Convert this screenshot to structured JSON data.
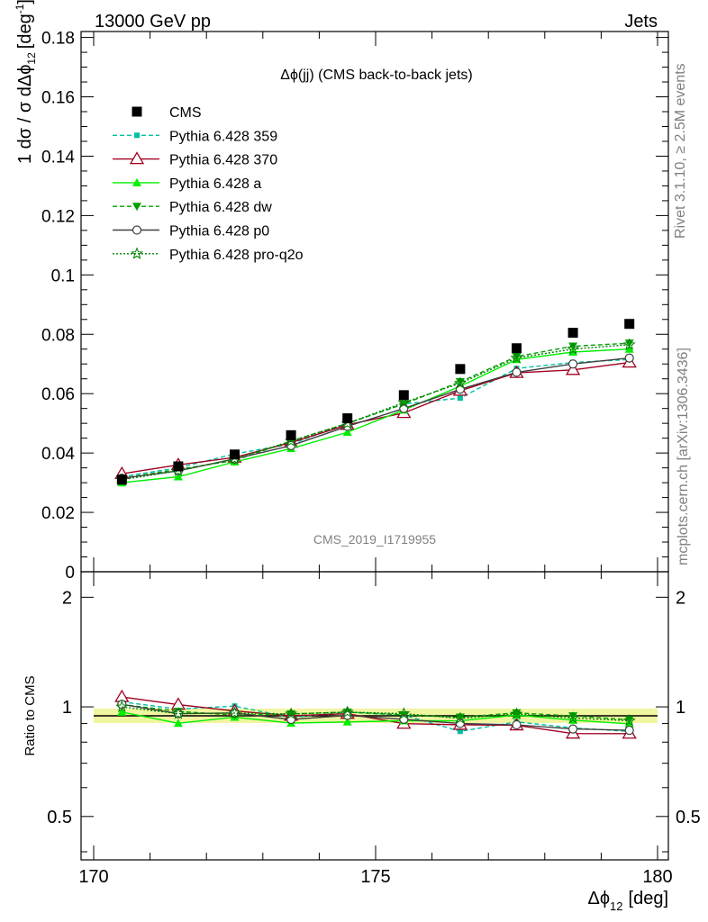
{
  "header": {
    "left": "13000 GeV pp",
    "right": "Jets"
  },
  "side": {
    "rivet": "Rivet 3.1.10, ≥ 2.5M events",
    "mcplots": "mcplots.cern.ch [arXiv:1306.3436]"
  },
  "chart_data": {
    "type": "line",
    "title": "Δϕ(jj) (CMS back-to-back jets)",
    "analysis_id": "CMS_2019_I1719955",
    "xlabel": "Δϕ",
    "xlabel_sub": "12",
    "xlabel_unit": "[deg]",
    "ylabel_main": "1 dσ / σ dΔϕ",
    "ylabel_sub": "12",
    "ylabel_unit": "[deg",
    "ylabel_unit_sup": "-1",
    "ylabel_unit_close": "]",
    "ratio_ylabel": "Ratio to CMS",
    "xlim": [
      170,
      180
    ],
    "ylim": [
      0,
      0.182
    ],
    "ratio_ylim": [
      0.38,
      2.35
    ],
    "x_ticks": [
      "170",
      "175",
      "180"
    ],
    "y_ticks": [
      "0",
      "0.02",
      "0.04",
      "0.06",
      "0.08",
      "0.1",
      "0.12",
      "0.14",
      "0.16",
      "0.18"
    ],
    "ratio_ticks": [
      "0.5",
      "1",
      "2"
    ],
    "x": [
      170.5,
      171.5,
      172.5,
      173.5,
      174.5,
      175.5,
      176.5,
      177.5,
      178.5,
      179.5
    ],
    "series": [
      {
        "name": "CMS",
        "color": "#000000",
        "dash": "",
        "marker": "square",
        "values": [
          0.031,
          0.0355,
          0.0395,
          0.046,
          0.0517,
          0.0595,
          0.0683,
          0.0753,
          0.0805,
          0.0835
        ]
      },
      {
        "name": "Pythia 6.428 359",
        "color": "#00c0a0",
        "dash": "5,3",
        "marker": "smallsquare",
        "values": [
          0.032,
          0.035,
          0.0397,
          0.043,
          0.05,
          0.0565,
          0.0585,
          0.0685,
          0.0705,
          0.0715
        ]
      },
      {
        "name": "Pythia 6.428 370",
        "color": "#a00020",
        "dash": "",
        "marker": "opentriangle",
        "values": [
          0.033,
          0.036,
          0.0385,
          0.0435,
          0.0495,
          0.0535,
          0.061,
          0.067,
          0.068,
          0.0705
        ]
      },
      {
        "name": "Pythia 6.428 a",
        "color": "#00ee00",
        "dash": "",
        "marker": "triangle",
        "values": [
          0.03,
          0.032,
          0.037,
          0.0415,
          0.047,
          0.0545,
          0.0625,
          0.0715,
          0.074,
          0.075
        ]
      },
      {
        "name": "Pythia 6.428 dw",
        "color": "#00a000",
        "dash": "5,3",
        "marker": "downtriangle",
        "values": [
          0.0315,
          0.0345,
          0.0375,
          0.044,
          0.05,
          0.0565,
          0.064,
          0.0725,
          0.076,
          0.077
        ]
      },
      {
        "name": "Pythia 6.428 p0",
        "color": "#404040",
        "dash": "",
        "marker": "opencircle",
        "values": [
          0.0315,
          0.034,
          0.038,
          0.0425,
          0.049,
          0.055,
          0.0615,
          0.0672,
          0.07,
          0.072
        ]
      },
      {
        "name": "Pythia 6.428 pro-q2o",
        "color": "#008000",
        "dash": "2,2",
        "marker": "star",
        "values": [
          0.031,
          0.034,
          0.038,
          0.044,
          0.05,
          0.057,
          0.0635,
          0.072,
          0.075,
          0.0765
        ]
      }
    ]
  }
}
